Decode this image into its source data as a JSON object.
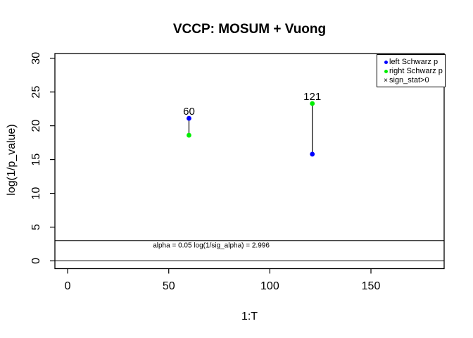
{
  "title": "VCCP: MOSUM + Vuong",
  "axes": {
    "xlabel": "1:T",
    "ylabel": "log(1/p_value)",
    "x_ticks": [
      0,
      50,
      100,
      150
    ],
    "y_ticks": [
      0,
      5,
      10,
      15,
      20,
      25,
      30
    ],
    "xlim": [
      -6.3,
      186.2
    ],
    "ylim": [
      -1.15,
      30.7
    ]
  },
  "chart_data": {
    "type": "scatter",
    "title": "VCCP: MOSUM + Vuong",
    "xlabel": "1:T",
    "ylabel": "log(1/p_value)",
    "xlim": [
      -6.3,
      186.2
    ],
    "ylim": [
      -1.15,
      30.7
    ],
    "x_ticks": [
      0,
      50,
      100,
      150
    ],
    "y_ticks": [
      0,
      5,
      10,
      15,
      20,
      25,
      30
    ],
    "grid": false,
    "legend_position": "topright",
    "series": [
      {
        "name": "left Schwarz p",
        "color": "#0000ff",
        "marker": "circle",
        "points": [
          {
            "x": 60,
            "y": 21.1
          },
          {
            "x": 121,
            "y": 15.8
          }
        ]
      },
      {
        "name": "right Schwarz p",
        "color": "#00ee00",
        "marker": "circle",
        "points": [
          {
            "x": 60,
            "y": 18.6
          },
          {
            "x": 121,
            "y": 23.3
          }
        ]
      }
    ],
    "segments": [
      {
        "x": 60,
        "y1": 18.6,
        "y2": 21.1
      },
      {
        "x": 121,
        "y1": 15.8,
        "y2": 23.3
      }
    ],
    "point_labels": [
      {
        "x": 60,
        "y": 21.1,
        "text": "60"
      },
      {
        "x": 121,
        "y": 23.3,
        "text": "121"
      }
    ],
    "hlines": [
      {
        "y": 2.996,
        "name": "alpha-threshold-line"
      },
      {
        "y": 0,
        "name": "zero-line"
      }
    ],
    "annotation": {
      "text": "alpha = 0.05 log(1/sig_alpha) = 2.996",
      "x": 71,
      "y": 2.0
    }
  },
  "legend": {
    "items": [
      {
        "label": "left Schwarz p",
        "marker": "circle",
        "color": "#0000ff"
      },
      {
        "label": "right Schwarz p",
        "marker": "circle",
        "color": "#00ee00"
      },
      {
        "label": "sign_stat>0",
        "marker": "cross",
        "color": "#000000"
      }
    ]
  },
  "colors": {
    "foreground": "#000000",
    "background": "#ffffff"
  }
}
